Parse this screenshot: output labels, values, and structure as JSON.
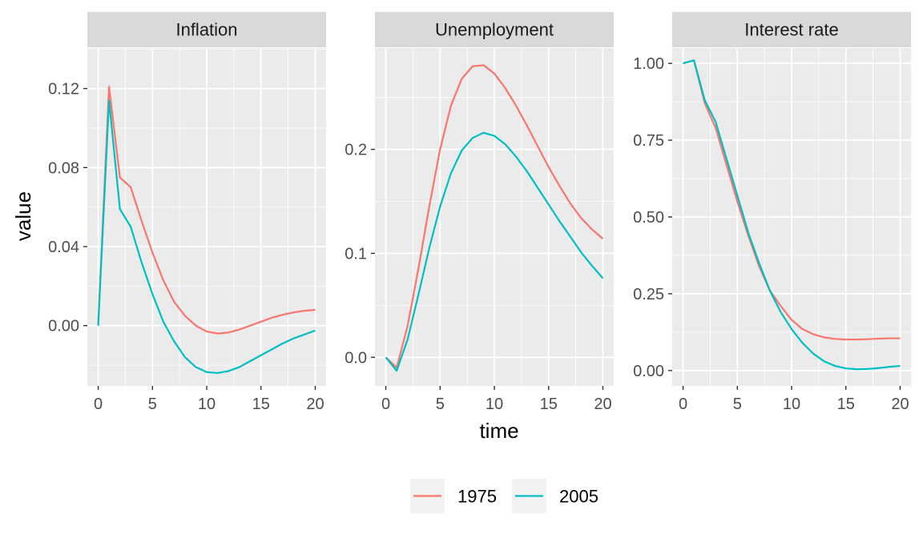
{
  "chart_data": {
    "type": "line",
    "xlabel": "time",
    "ylabel": "value",
    "x_ticks": [
      0,
      5,
      10,
      15,
      20
    ],
    "grid": true,
    "legend_position": "bottom",
    "series_colors": {
      "1975": "#F8766D",
      "2005": "#00BFC4"
    },
    "panels": [
      {
        "title": "Inflation",
        "ylim": [
          -0.0305,
          0.1405
        ],
        "y_ticks": [
          0.0,
          0.04,
          0.08,
          0.12
        ],
        "y_tick_labels": [
          "0.00",
          "0.04",
          "0.08",
          "0.12"
        ],
        "series": [
          {
            "name": "1975",
            "x": [
              0,
              1,
              2,
              3,
              4,
              5,
              6,
              7,
              8,
              9,
              10,
              11,
              12,
              13,
              14,
              15,
              16,
              17,
              18,
              19,
              20
            ],
            "values": [
              0.0,
              0.121,
              0.075,
              0.07,
              0.053,
              0.037,
              0.023,
              0.012,
              0.005,
              0.0,
              -0.003,
              -0.004,
              -0.0035,
              -0.002,
              0.0,
              0.002,
              0.004,
              0.0055,
              0.0067,
              0.0075,
              0.008
            ]
          },
          {
            "name": "2005",
            "x": [
              0,
              1,
              2,
              3,
              4,
              5,
              6,
              7,
              8,
              9,
              10,
              11,
              12,
              13,
              14,
              15,
              16,
              17,
              18,
              19,
              20
            ],
            "values": [
              0.0,
              0.114,
              0.059,
              0.05,
              0.032,
              0.016,
              0.002,
              -0.008,
              -0.016,
              -0.021,
              -0.0235,
              -0.024,
              -0.023,
              -0.021,
              -0.018,
              -0.015,
              -0.012,
              -0.009,
              -0.0065,
              -0.0045,
              -0.0025
            ]
          }
        ]
      },
      {
        "title": "Unemployment",
        "ylim": [
          -0.0275,
          0.2975
        ],
        "y_ticks": [
          0.0,
          0.1,
          0.2
        ],
        "y_tick_labels": [
          "0.0",
          "0.1",
          "0.2"
        ],
        "series": [
          {
            "name": "1975",
            "x": [
              0,
              1,
              2,
              3,
              4,
              5,
              6,
              7,
              8,
              9,
              10,
              11,
              12,
              13,
              14,
              15,
              16,
              17,
              18,
              19,
              20
            ],
            "values": [
              0.0,
              -0.01,
              0.03,
              0.085,
              0.145,
              0.2,
              0.242,
              0.268,
              0.28,
              0.281,
              0.273,
              0.259,
              0.242,
              0.223,
              0.203,
              0.183,
              0.165,
              0.148,
              0.134,
              0.123,
              0.114
            ]
          },
          {
            "name": "2005",
            "x": [
              0,
              1,
              2,
              3,
              4,
              5,
              6,
              7,
              8,
              9,
              10,
              11,
              12,
              13,
              14,
              15,
              16,
              17,
              18,
              19,
              20
            ],
            "values": [
              0.0,
              -0.013,
              0.017,
              0.06,
              0.105,
              0.145,
              0.177,
              0.199,
              0.211,
              0.216,
              0.213,
              0.205,
              0.193,
              0.179,
              0.163,
              0.147,
              0.131,
              0.116,
              0.101,
              0.088,
              0.076
            ]
          }
        ]
      },
      {
        "title": "Interest rate",
        "ylim": [
          -0.05,
          1.05
        ],
        "y_ticks": [
          0.0,
          0.25,
          0.5,
          0.75,
          1.0
        ],
        "y_tick_labels": [
          "0.00",
          "0.25",
          "0.50",
          "0.75",
          "1.00"
        ],
        "series": [
          {
            "name": "1975",
            "x": [
              0,
              1,
              2,
              3,
              4,
              5,
              6,
              7,
              8,
              9,
              10,
              11,
              12,
              13,
              14,
              15,
              16,
              17,
              18,
              19,
              20
            ],
            "values": [
              1.0,
              1.01,
              0.87,
              0.79,
              0.67,
              0.55,
              0.44,
              0.34,
              0.26,
              0.21,
              0.165,
              0.135,
              0.118,
              0.108,
              0.103,
              0.101,
              0.101,
              0.102,
              0.104,
              0.105,
              0.105
            ]
          },
          {
            "name": "2005",
            "x": [
              0,
              1,
              2,
              3,
              4,
              5,
              6,
              7,
              8,
              9,
              10,
              11,
              12,
              13,
              14,
              15,
              16,
              17,
              18,
              19,
              20
            ],
            "values": [
              1.0,
              1.01,
              0.88,
              0.81,
              0.69,
              0.57,
              0.45,
              0.35,
              0.26,
              0.19,
              0.135,
              0.09,
              0.055,
              0.03,
              0.015,
              0.007,
              0.004,
              0.005,
              0.008,
              0.012,
              0.015
            ]
          }
        ]
      }
    ],
    "legend": {
      "entries": [
        "1975",
        "2005"
      ]
    }
  }
}
